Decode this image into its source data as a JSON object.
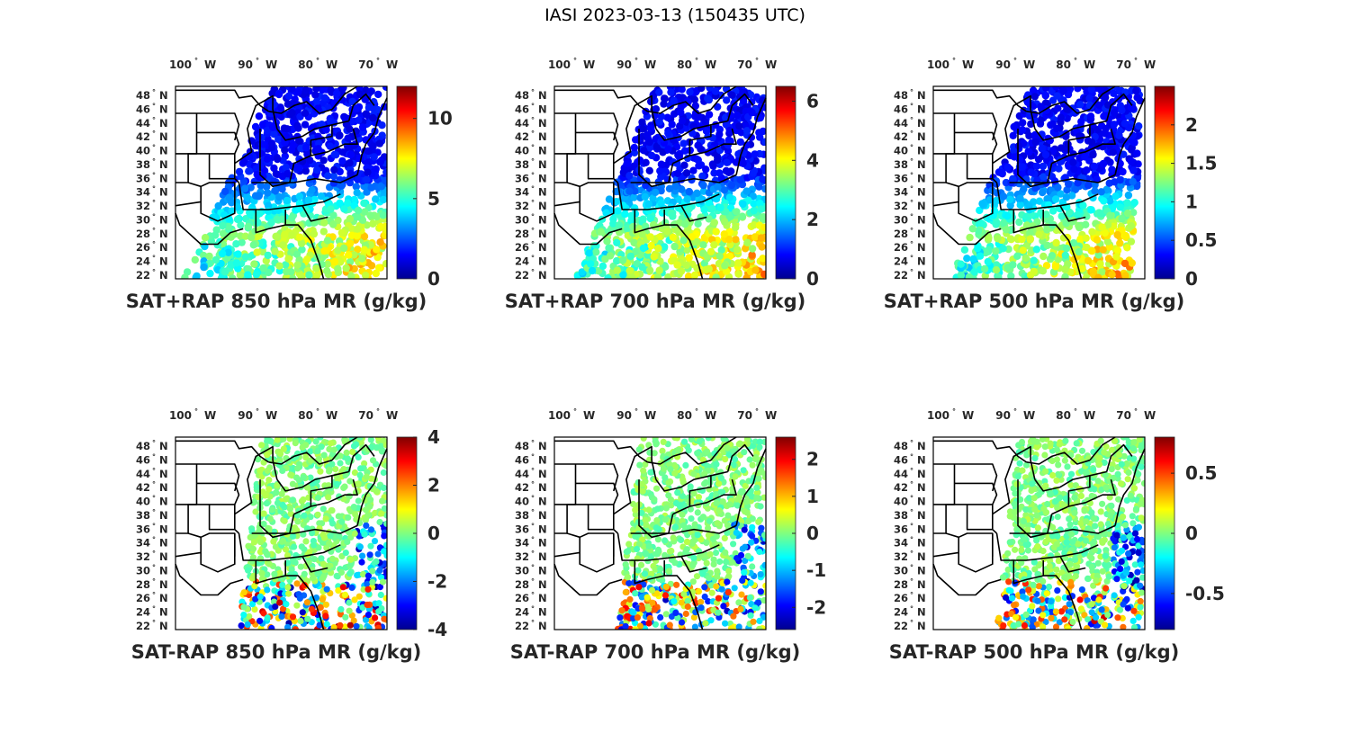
{
  "figure": {
    "title": "IASI 2023-03-13 (150435 UTC)"
  },
  "lon_ticks": [
    {
      "deg": "100",
      "sym": "°",
      "hem": "W"
    },
    {
      "deg": "90",
      "sym": "°",
      "hem": "W"
    },
    {
      "deg": "80",
      "sym": "°",
      "hem": "W"
    },
    {
      "deg": "70",
      "sym": "°",
      "hem": "W"
    }
  ],
  "lat_ticks": [
    {
      "deg": "48",
      "sym": "°",
      "hem": "N"
    },
    {
      "deg": "46",
      "sym": "°",
      "hem": "N"
    },
    {
      "deg": "44",
      "sym": "°",
      "hem": "N"
    },
    {
      "deg": "42",
      "sym": "°",
      "hem": "N"
    },
    {
      "deg": "40",
      "sym": "°",
      "hem": "N"
    },
    {
      "deg": "38",
      "sym": "°",
      "hem": "N"
    },
    {
      "deg": "36",
      "sym": "°",
      "hem": "N"
    },
    {
      "deg": "34",
      "sym": "°",
      "hem": "N"
    },
    {
      "deg": "32",
      "sym": "°",
      "hem": "N"
    },
    {
      "deg": "30",
      "sym": "°",
      "hem": "N"
    },
    {
      "deg": "28",
      "sym": "°",
      "hem": "N"
    },
    {
      "deg": "26",
      "sym": "°",
      "hem": "N"
    },
    {
      "deg": "24",
      "sym": "°",
      "hem": "N"
    },
    {
      "deg": "22",
      "sym": "°",
      "hem": "N"
    }
  ],
  "colormap": [
    "#00008f",
    "#0000ff",
    "#0080ff",
    "#00ffff",
    "#80ff80",
    "#ffff00",
    "#ff8000",
    "#ff0000",
    "#800000"
  ],
  "panels": [
    {
      "id": "850-sum",
      "title": "SAT+RAP 850 hPa MR (g/kg)",
      "cbar_ticks": [
        "10",
        "5",
        "0"
      ],
      "cbar_range": [
        0,
        12
      ],
      "cbar_values": [
        10,
        5,
        0
      ]
    },
    {
      "id": "700-sum",
      "title": "SAT+RAP 700 hPa MR (g/kg)",
      "cbar_ticks": [
        "6",
        "4",
        "2",
        "0"
      ],
      "cbar_range": [
        0,
        6.5
      ],
      "cbar_values": [
        6,
        4,
        2,
        0
      ]
    },
    {
      "id": "500-sum",
      "title": "SAT+RAP 500 hPa MR (g/kg)",
      "cbar_ticks": [
        "2",
        "1.5",
        "1",
        "0.5",
        "0"
      ],
      "cbar_range": [
        0,
        2.5
      ],
      "cbar_values": [
        2,
        1.5,
        1,
        0.5,
        0
      ]
    },
    {
      "id": "850-diff",
      "title": "SAT-RAP 850 hPa MR (g/kg)",
      "cbar_ticks": [
        "4",
        "2",
        "0",
        "-2",
        "-4"
      ],
      "cbar_range": [
        -4,
        4
      ],
      "cbar_values": [
        4,
        2,
        0,
        -2,
        -4
      ]
    },
    {
      "id": "700-diff",
      "title": "SAT-RAP 700 hPa MR (g/kg)",
      "cbar_ticks": [
        "2",
        "1",
        "0",
        "-1",
        "-2"
      ],
      "cbar_range": [
        -2.6,
        2.6
      ],
      "cbar_values": [
        2,
        1,
        0,
        -1,
        -2
      ]
    },
    {
      "id": "500-diff",
      "title": "SAT-RAP 500 hPa MR (g/kg)",
      "cbar_ticks": [
        "0.5",
        "0",
        "-0.5"
      ],
      "cbar_range": [
        -0.8,
        0.8
      ],
      "cbar_values": [
        0.5,
        0,
        -0.5
      ]
    }
  ]
}
